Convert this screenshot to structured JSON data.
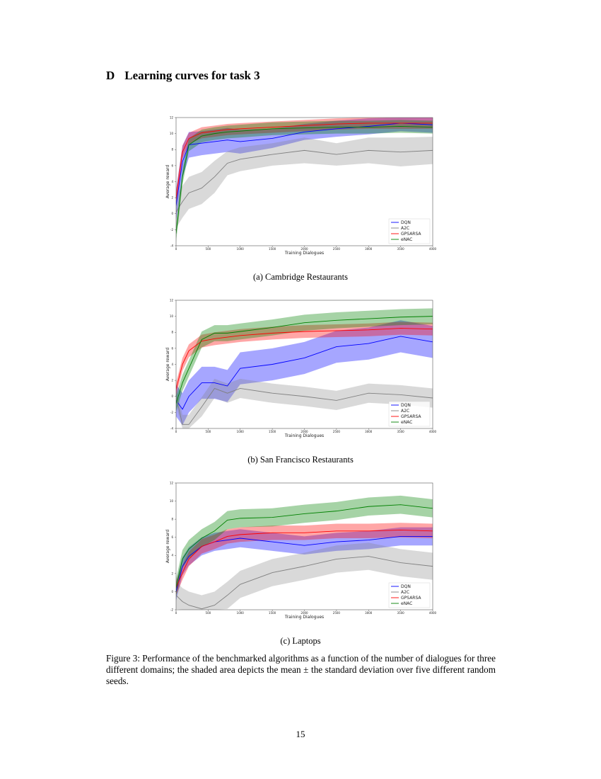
{
  "section_number": "D",
  "section_title": "Learning curves for task 3",
  "chart_data": [
    {
      "type": "line",
      "caption": "(a) Cambridge Restaurants",
      "x_label": "Training Dialogues",
      "y_label": "Average reward",
      "x": [
        0,
        100,
        200,
        400,
        600,
        800,
        1000,
        1500,
        2000,
        2500,
        3000,
        3500,
        4000
      ],
      "xlim": [
        0,
        4000
      ],
      "xticks": [
        0,
        500,
        1000,
        1500,
        2000,
        2500,
        3000,
        3500,
        4000
      ],
      "ylim": [
        -4,
        12
      ],
      "yticks": [
        -4,
        -2,
        0,
        2,
        4,
        6,
        8,
        10,
        12
      ],
      "grid": false,
      "legend": "lower right",
      "series": [
        {
          "name": "DQN",
          "color": "#0000ff",
          "values": [
            1.0,
            6.5,
            8.6,
            8.8,
            9.0,
            9.2,
            9.0,
            9.4,
            10.2,
            10.6,
            10.9,
            11.3,
            11.1
          ],
          "lower": [
            -1.0,
            4.5,
            7.0,
            7.3,
            7.5,
            7.7,
            7.5,
            8.2,
            9.2,
            9.6,
            9.9,
            10.3,
            10.1
          ],
          "upper": [
            3.0,
            8.5,
            10.2,
            10.3,
            10.5,
            10.7,
            10.5,
            10.6,
            11.2,
            11.6,
            11.9,
            12.0,
            12.0
          ]
        },
        {
          "name": "A2C",
          "color": "#808080",
          "values": [
            0.2,
            1.5,
            2.6,
            3.2,
            4.6,
            6.3,
            6.8,
            7.4,
            7.9,
            7.4,
            7.9,
            7.7,
            7.9
          ],
          "lower": [
            -1.8,
            -0.5,
            0.6,
            1.2,
            2.6,
            4.8,
            5.3,
            6.0,
            6.3,
            6.0,
            6.3,
            5.9,
            6.2
          ],
          "upper": [
            2.2,
            3.5,
            4.6,
            5.2,
            6.6,
            7.8,
            8.3,
            8.8,
            9.5,
            8.8,
            9.5,
            9.5,
            9.6
          ]
        },
        {
          "name": "GPSARSA",
          "color": "#ff0000",
          "values": [
            1.9,
            7.7,
            9.4,
            10.1,
            10.3,
            10.5,
            10.6,
            10.8,
            11.0,
            11.2,
            11.3,
            11.3,
            11.3
          ],
          "lower": [
            0.9,
            6.9,
            8.7,
            9.4,
            9.6,
            9.8,
            9.9,
            10.1,
            10.3,
            10.5,
            10.6,
            10.6,
            10.6
          ],
          "upper": [
            2.9,
            8.5,
            10.1,
            10.8,
            11.0,
            11.2,
            11.3,
            11.5,
            11.7,
            11.9,
            12.0,
            12.0,
            12.0
          ]
        },
        {
          "name": "eNAC",
          "color": "#008000",
          "values": [
            -2.5,
            4.6,
            8.6,
            9.7,
            10.0,
            10.2,
            10.3,
            10.6,
            10.7,
            10.8,
            10.8,
            10.9,
            10.8
          ],
          "lower": [
            -3.5,
            3.6,
            7.8,
            8.9,
            9.2,
            9.4,
            9.5,
            9.8,
            9.9,
            10.0,
            10.0,
            10.1,
            10.0
          ],
          "upper": [
            -1.5,
            5.6,
            9.4,
            10.5,
            10.8,
            11.0,
            11.1,
            11.4,
            11.5,
            11.6,
            11.6,
            11.7,
            11.6
          ]
        }
      ]
    },
    {
      "type": "line",
      "caption": "(b) San Francisco Restaurants",
      "x_label": "Training Dialogues",
      "y_label": "Average reward",
      "x": [
        0,
        100,
        200,
        400,
        600,
        800,
        1000,
        1500,
        2000,
        2500,
        3000,
        3500,
        4000
      ],
      "xlim": [
        0,
        4000
      ],
      "xticks": [
        0,
        500,
        1000,
        1500,
        2000,
        2500,
        3000,
        3500,
        4000
      ],
      "ylim": [
        -4,
        12
      ],
      "yticks": [
        -4,
        -2,
        0,
        2,
        4,
        6,
        8,
        10,
        12
      ],
      "grid": false,
      "legend": "lower right",
      "series": [
        {
          "name": "DQN",
          "color": "#0000ff",
          "values": [
            -0.5,
            -1.6,
            0,
            1.7,
            1.7,
            1.3,
            3.5,
            4.0,
            4.8,
            6.2,
            6.6,
            7.5,
            6.8
          ],
          "lower": [
            -2.5,
            -3.6,
            -2.0,
            -0.3,
            -0.3,
            -0.7,
            1.5,
            2.0,
            2.8,
            4.2,
            4.6,
            5.5,
            4.8
          ],
          "upper": [
            1.5,
            0.4,
            2.0,
            3.7,
            3.7,
            3.3,
            5.5,
            6.0,
            6.8,
            8.2,
            8.6,
            9.5,
            8.8
          ]
        },
        {
          "name": "A2C",
          "color": "#808080",
          "values": [
            0,
            -3.5,
            -3.5,
            -1.3,
            1.0,
            0.4,
            1.0,
            0.4,
            0,
            -0.5,
            0.4,
            0.2,
            -0.2
          ],
          "lower": [
            -1.2,
            -4.0,
            -4.0,
            -2.5,
            -0.2,
            -0.8,
            -0.2,
            -0.8,
            -1.2,
            -1.7,
            -0.8,
            -1.0,
            -1.4
          ],
          "upper": [
            1.2,
            -2.3,
            -2.3,
            -0.1,
            2.2,
            1.6,
            2.2,
            1.6,
            1.2,
            0.7,
            1.6,
            1.4,
            1.0
          ]
        },
        {
          "name": "GPSARSA",
          "color": "#ff0000",
          "values": [
            0.9,
            4.0,
            5.7,
            6.9,
            7.2,
            7.4,
            7.6,
            7.9,
            8.1,
            8.2,
            8.3,
            8.5,
            8.4
          ],
          "lower": [
            0.1,
            3.2,
            4.9,
            6.1,
            6.4,
            6.6,
            6.8,
            7.1,
            7.3,
            7.4,
            7.5,
            7.7,
            7.6
          ],
          "upper": [
            1.7,
            4.8,
            6.5,
            7.7,
            8.0,
            8.2,
            8.4,
            8.7,
            8.9,
            9.0,
            9.1,
            9.3,
            9.2
          ]
        },
        {
          "name": "eNAC",
          "color": "#008000",
          "values": [
            -0.9,
            1.7,
            3.5,
            7.1,
            7.9,
            7.9,
            8.1,
            8.6,
            9.2,
            9.5,
            9.7,
            9.9,
            10.0
          ],
          "lower": [
            -1.9,
            0.7,
            2.5,
            6.1,
            6.9,
            6.9,
            7.1,
            7.6,
            8.2,
            8.5,
            8.7,
            8.9,
            9.0
          ],
          "upper": [
            0.1,
            2.7,
            4.5,
            8.1,
            8.9,
            8.9,
            9.1,
            9.6,
            10.2,
            10.5,
            10.7,
            10.9,
            11.0
          ]
        }
      ]
    },
    {
      "type": "line",
      "caption": "(c) Laptops",
      "x_label": "Training Dialogues",
      "y_label": "Average reward",
      "x": [
        0,
        100,
        200,
        400,
        600,
        800,
        1000,
        1500,
        2000,
        2500,
        3000,
        3500,
        4000
      ],
      "xlim": [
        0,
        4000
      ],
      "xticks": [
        0,
        500,
        1000,
        1500,
        2000,
        2500,
        3000,
        3500,
        4000
      ],
      "ylim": [
        -2,
        12
      ],
      "yticks": [
        -2,
        0,
        2,
        4,
        6,
        8,
        10,
        12
      ],
      "grid": false,
      "legend": "lower right",
      "series": [
        {
          "name": "DQN",
          "color": "#0000ff",
          "values": [
            0,
            2.8,
            3.9,
            5.0,
            5.5,
            5.7,
            5.9,
            5.5,
            5.1,
            5.5,
            5.7,
            6.1,
            6.1
          ],
          "lower": [
            -1.0,
            1.8,
            2.9,
            4.0,
            4.5,
            4.7,
            4.9,
            4.5,
            4.1,
            4.5,
            4.7,
            5.1,
            5.1
          ],
          "upper": [
            1.0,
            3.8,
            4.9,
            6.0,
            6.5,
            6.7,
            6.9,
            6.5,
            6.1,
            6.5,
            6.7,
            7.1,
            7.1
          ]
        },
        {
          "name": "A2C",
          "color": "#808080",
          "values": [
            -0.4,
            -1.1,
            -1.5,
            -1.9,
            -1.5,
            -0.4,
            0.8,
            2.1,
            2.8,
            3.6,
            3.9,
            3.2,
            2.8
          ],
          "lower": [
            -1.9,
            -2.0,
            -2.0,
            -2.0,
            -2.0,
            -1.9,
            -0.7,
            0.6,
            1.3,
            2.1,
            2.4,
            1.7,
            1.3
          ],
          "upper": [
            1.1,
            0.4,
            0,
            -0.4,
            0,
            1.1,
            2.3,
            3.6,
            4.3,
            5.1,
            5.4,
            4.7,
            4.3
          ]
        },
        {
          "name": "GPSARSA",
          "color": "#ff0000",
          "values": [
            0.4,
            2.1,
            3.6,
            5.0,
            5.5,
            6.1,
            6.3,
            6.5,
            6.5,
            6.7,
            6.7,
            6.8,
            6.7
          ],
          "lower": [
            -0.4,
            1.3,
            2.8,
            4.2,
            4.7,
            5.3,
            5.5,
            5.7,
            5.7,
            5.9,
            5.9,
            6.0,
            5.9
          ],
          "upper": [
            1.2,
            2.9,
            4.4,
            5.8,
            6.3,
            6.9,
            7.1,
            7.3,
            7.3,
            7.5,
            7.5,
            7.6,
            7.5
          ]
        },
        {
          "name": "eNAC",
          "color": "#008000",
          "values": [
            0.4,
            3.6,
            4.7,
            5.9,
            6.7,
            7.9,
            8.1,
            8.2,
            8.6,
            8.9,
            9.4,
            9.6,
            9.2
          ],
          "lower": [
            -0.6,
            2.6,
            3.7,
            4.9,
            5.7,
            6.9,
            7.1,
            7.2,
            7.6,
            7.9,
            8.4,
            8.6,
            8.2
          ],
          "upper": [
            1.4,
            4.6,
            5.7,
            6.9,
            7.7,
            8.9,
            9.1,
            9.2,
            9.6,
            9.9,
            10.4,
            10.6,
            10.2
          ]
        }
      ]
    }
  ],
  "figure_caption": "Figure 3: Performance of the benchmarked algorithms as a function of the number of dialogues for three different domains; the shaded area depicts the mean ± the standard deviation over five different random seeds.",
  "page_number": "15"
}
